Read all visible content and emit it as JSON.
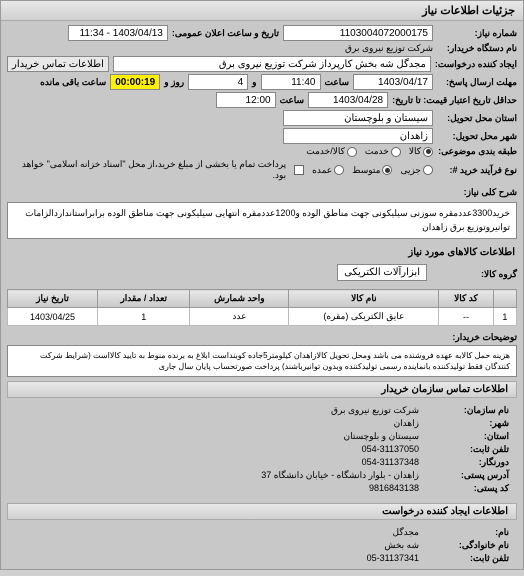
{
  "header": {
    "title": "جزئیات اطلاعات نیاز"
  },
  "form": {
    "request_number_label": "شماره نیاز:",
    "request_number": "1103004072000175",
    "public_date_label": "تاریخ و ساعت اعلان عمومی:",
    "public_date": "1403/04/13 - 11:34",
    "buyer_org_label": "نام دستگاه خریدار:",
    "buyer_org": "شرکت توزیع نیروی برق",
    "creator_label": "ایجاد کننده درخواست:",
    "creator": "مجدگل شه بخش کارپرداز شرکت توزیع نیروی برق",
    "contact_button": "اطلاعات تماس خریدار",
    "deadline_label": "مهلت ارسال پاسخ:",
    "to_date_label": "تا تاریخ:",
    "deadline_date": "1403/04/17",
    "time_label": "ساعت",
    "deadline_time": "11:40",
    "and_label": "و",
    "days_remaining": "4",
    "day_and_label": "روز و",
    "countdown": "00:00:19",
    "remaining_label": "ساعت باقی مانده",
    "price_validity_label": "حداقل تاریخ اعتبار قیمت: تا تاریخ:",
    "price_validity_date": "1403/04/28",
    "price_validity_time": "12:00",
    "delivery_province_label": "استان محل تحویل:",
    "delivery_province": "سیستان و بلوچستان",
    "delivery_city_label": "شهر محل تحویل:",
    "delivery_city": "زاهدان",
    "category_label": "طبقه بندی موضوعی:",
    "cat_goods": "کالا",
    "cat_service": "خدمت",
    "cat_both": "کالا/خدمت",
    "process_type_label": "نوع فرآیند خرید #:",
    "proc_minor": "جزیی",
    "proc_medium": "متوسط",
    "proc_major": "عمده",
    "payment_note": "پرداخت تمام یا بخشی از مبلغ خرید،از محل \"اسناد خزانه اسلامی\" خواهد بود.",
    "description_label": "شرح کلی نیاز:",
    "description": "خرید3300عددمقره سوزنی سیلیکونی جهت مناطق الوده و1200عددمقره انتهایی سیلیکونی جهت مناطق الوده برابراستانداردالزامات توانیروتوزیع برق زاهدان",
    "group_label": "گروه کالا:",
    "group_value": "ابزارآلات الکتریکی"
  },
  "table": {
    "title": "اطلاعات کالاهای مورد نیاز",
    "headers": {
      "row": "",
      "code": "کد کالا",
      "name": "نام کالا",
      "unit": "واحد شمارش",
      "qty": "تعداد / مقدار",
      "date": "تاریخ نیاز"
    },
    "rows": [
      {
        "num": "1",
        "code": "--",
        "name": "عایق الکتریکی (مقره)",
        "unit": "عدد",
        "qty": "1",
        "date": "1403/04/25"
      }
    ]
  },
  "notes": {
    "label": "توضیحات خریدار:",
    "text": "هزینه حمل کالابه عهده فروشنده می باشد ومحل تحویل کالازاهدان کیلومتر5جاده کوبنداست ابلاغ به برنده منوط به تایید کالااست (شرایط شرکت کنندگان فقط تولیدکننده بانماینده رسمی تولیدکننده وبدون توانیرباشند) پرداخت صورتحساب پایان سال جاری"
  },
  "contact": {
    "header": "اطلاعات تماس سازمان خریدار",
    "org_label": "نام سازمان:",
    "org": "شرکت توزیع نیروی برق",
    "city_label": "شهر:",
    "city": "زاهدان",
    "province_label": "استان:",
    "province": "سیستان و بلوچستان",
    "phone_label": "تلفن ثابت:",
    "phone": "054-31137050",
    "fax_label": "دورنگار:",
    "fax": "054-31137348",
    "address_label": "آدرس پستی:",
    "address": "زاهدان - بلوار دانشگاه - خیابان دانشگاه 37",
    "postal_label": "کد پستی:",
    "postal": "9816843138",
    "creator_header": "اطلاعات ایجاد کننده درخواست",
    "name_label": "نام:",
    "name": "مجدگل",
    "family_label": "نام خانوادگی:",
    "family": "شه بخش",
    "creator_phone_label": "تلفن ثابت:",
    "creator_phone": "05-31137341"
  },
  "colors": {
    "bg": "#c8c8c8",
    "header_grad_top": "#e8e8e8",
    "header_grad_bottom": "#d0d0d0",
    "border": "#999",
    "input_bg": "#fff",
    "countdown_bg": "#fff200"
  }
}
